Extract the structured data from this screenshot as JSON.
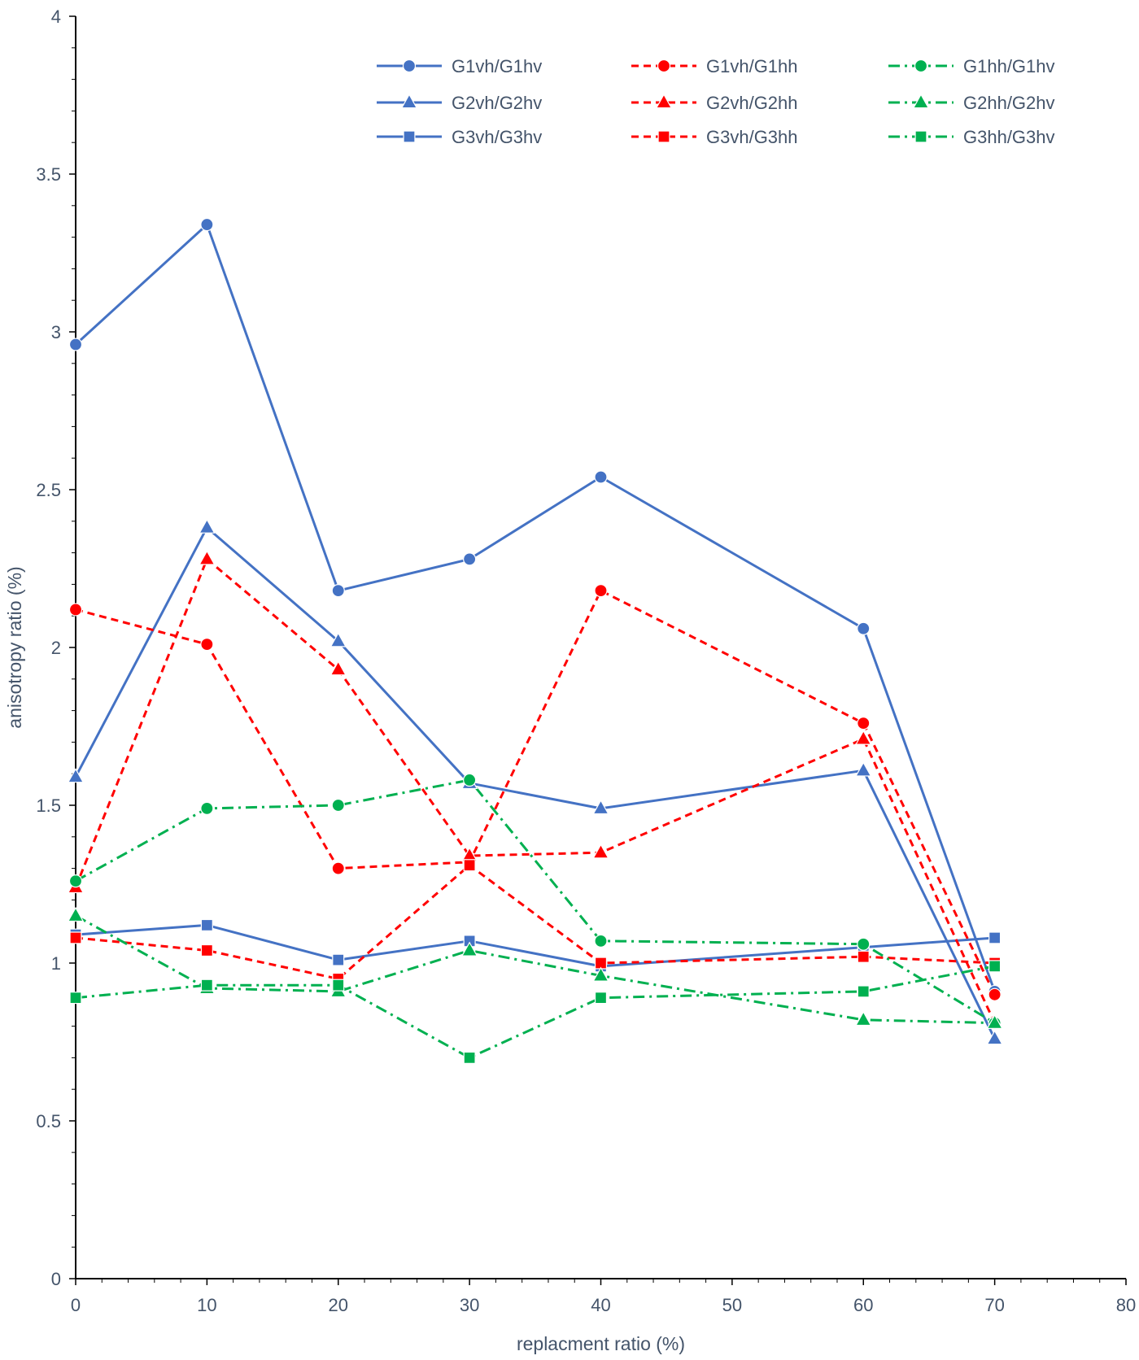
{
  "chart_data": {
    "type": "line",
    "title": "",
    "xlabel": "replacment ratio (%)",
    "ylabel": "anisotropy ratio (%)",
    "xlim": [
      0,
      80
    ],
    "ylim": [
      0,
      4
    ],
    "x_major_ticks": [
      0,
      10,
      20,
      30,
      40,
      50,
      60,
      70,
      80
    ],
    "x_tick_labels": [
      "0",
      "10",
      "20",
      "30",
      "40",
      "50",
      "60",
      "70",
      "80"
    ],
    "y_major_ticks": [
      0,
      0.5,
      1,
      1.5,
      2,
      2.5,
      3,
      3.5,
      4
    ],
    "y_tick_labels": [
      "0",
      "0.5",
      "1",
      "1.5",
      "2",
      "2.5",
      "3",
      "3.5",
      "4"
    ],
    "grid": false,
    "legend_position": "top-right",
    "colors": {
      "blue": "#4472c4",
      "red": "#ff0000",
      "green": "#00b050",
      "axis": "#000000",
      "text": "#44546a"
    },
    "series": [
      {
        "name": "G1vh/G1hv",
        "color": "#4472c4",
        "line": "solid",
        "marker": "circle",
        "x": [
          0,
          10,
          20,
          30,
          40,
          60,
          70
        ],
        "y": [
          2.96,
          3.34,
          2.18,
          2.28,
          2.54,
          2.06,
          0.91
        ]
      },
      {
        "name": "G2vh/G2hv",
        "color": "#4472c4",
        "line": "solid",
        "marker": "triangle",
        "x": [
          0,
          10,
          20,
          30,
          40,
          60,
          70
        ],
        "y": [
          1.59,
          2.38,
          2.02,
          1.57,
          1.49,
          1.61,
          0.76
        ]
      },
      {
        "name": "G3vh/G3hv",
        "color": "#4472c4",
        "line": "solid",
        "marker": "square",
        "x": [
          0,
          10,
          20,
          30,
          40,
          60,
          70
        ],
        "y": [
          1.09,
          1.12,
          1.01,
          1.07,
          0.99,
          1.05,
          1.08
        ]
      },
      {
        "name": "G1vh/G1hh",
        "color": "#ff0000",
        "line": "dash",
        "marker": "circle",
        "x": [
          0,
          10,
          20,
          30,
          40,
          60,
          70
        ],
        "y": [
          2.12,
          2.01,
          1.3,
          1.32,
          2.18,
          1.76,
          0.9
        ]
      },
      {
        "name": "G2vh/G2hh",
        "color": "#ff0000",
        "line": "dash",
        "marker": "triangle",
        "x": [
          0,
          10,
          20,
          30,
          40,
          60,
          70
        ],
        "y": [
          1.24,
          2.28,
          1.93,
          1.34,
          1.35,
          1.71,
          0.81
        ]
      },
      {
        "name": "G3vh/G3hh",
        "color": "#ff0000",
        "line": "dash",
        "marker": "square",
        "x": [
          0,
          10,
          20,
          30,
          40,
          60,
          70
        ],
        "y": [
          1.08,
          1.04,
          0.95,
          1.31,
          1.0,
          1.02,
          1.0
        ]
      },
      {
        "name": "G1hh/G1hv",
        "color": "#00b050",
        "line": "dashdot",
        "marker": "circle",
        "x": [
          0,
          10,
          20,
          30,
          40,
          60,
          70
        ],
        "y": [
          1.26,
          1.49,
          1.5,
          1.58,
          1.07,
          1.06,
          0.81
        ]
      },
      {
        "name": "G2hh/G2hv",
        "color": "#00b050",
        "line": "dashdot",
        "marker": "triangle",
        "x": [
          0,
          10,
          20,
          30,
          40,
          60,
          70
        ],
        "y": [
          1.15,
          0.92,
          0.91,
          1.04,
          0.96,
          0.82,
          0.81
        ]
      },
      {
        "name": "G3hh/G3hv",
        "color": "#00b050",
        "line": "dashdot",
        "marker": "square",
        "x": [
          0,
          10,
          20,
          30,
          40,
          60,
          70
        ],
        "y": [
          0.89,
          0.93,
          0.93,
          0.7,
          0.89,
          0.91,
          0.99
        ]
      }
    ]
  }
}
